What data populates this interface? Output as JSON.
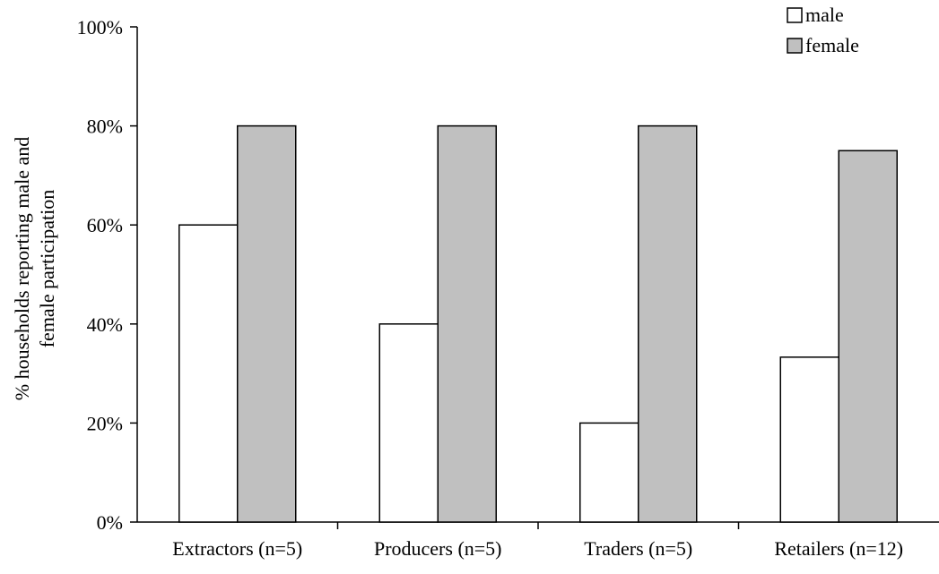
{
  "chart_data": {
    "type": "bar",
    "title": "",
    "xlabel": "",
    "ylabel": [
      "% households reporting male and",
      "female participation"
    ],
    "categories": [
      "Extractors (n=5)",
      "Producers (n=5)",
      "Traders (n=5)",
      "Retailers (n=12)"
    ],
    "series": [
      {
        "name": "male",
        "values": [
          60,
          40,
          20,
          33.3
        ],
        "color": "#ffffff"
      },
      {
        "name": "female",
        "values": [
          80,
          80,
          80,
          75
        ],
        "color": "#c0c0c0"
      }
    ],
    "ylim": [
      0,
      100
    ],
    "yticks": [
      0,
      20,
      40,
      60,
      80,
      100
    ],
    "ytick_labels": [
      "0%",
      "20%",
      "40%",
      "60%",
      "80%",
      "100%"
    ],
    "grid": false,
    "legend_position": "top-right"
  }
}
